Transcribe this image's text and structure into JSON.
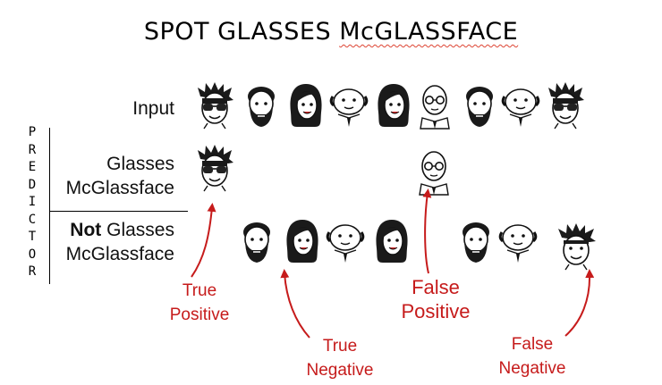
{
  "title": {
    "prefix": "SPOT GLASSES ",
    "squiggly": "McGLASSFACE"
  },
  "rows": {
    "input_label": "Input",
    "glasses_label": {
      "line1": "Glasses",
      "line2": "McGlassface"
    },
    "not_label": {
      "bold": "Not",
      "rest": " Glasses",
      "line2": "McGlassface"
    }
  },
  "predictor_letters": [
    "P",
    "R",
    "E",
    "D",
    "I",
    "C",
    "T",
    "O",
    "R"
  ],
  "annotations": {
    "true_positive": {
      "line1": "True",
      "line2": "Positive"
    },
    "true_negative": {
      "line1": "True",
      "line2": "Negative"
    },
    "false_positive": {
      "line1": "False",
      "line2": "Positive"
    },
    "false_negative": {
      "line1": "False",
      "line2": "Negative"
    }
  },
  "colors": {
    "annotation": "#c61b1b",
    "text": "#111111",
    "title_squiggle": "#dd3322"
  },
  "icons": [
    "glasses-spiky-hair-face-icon",
    "bearded-man-face-icon",
    "long-hair-woman-face-icon",
    "bald-round-man-face-icon",
    "bald-glasses-man-face-icon",
    "spiky-hair-face-icon",
    "red-arrow-icon"
  ]
}
